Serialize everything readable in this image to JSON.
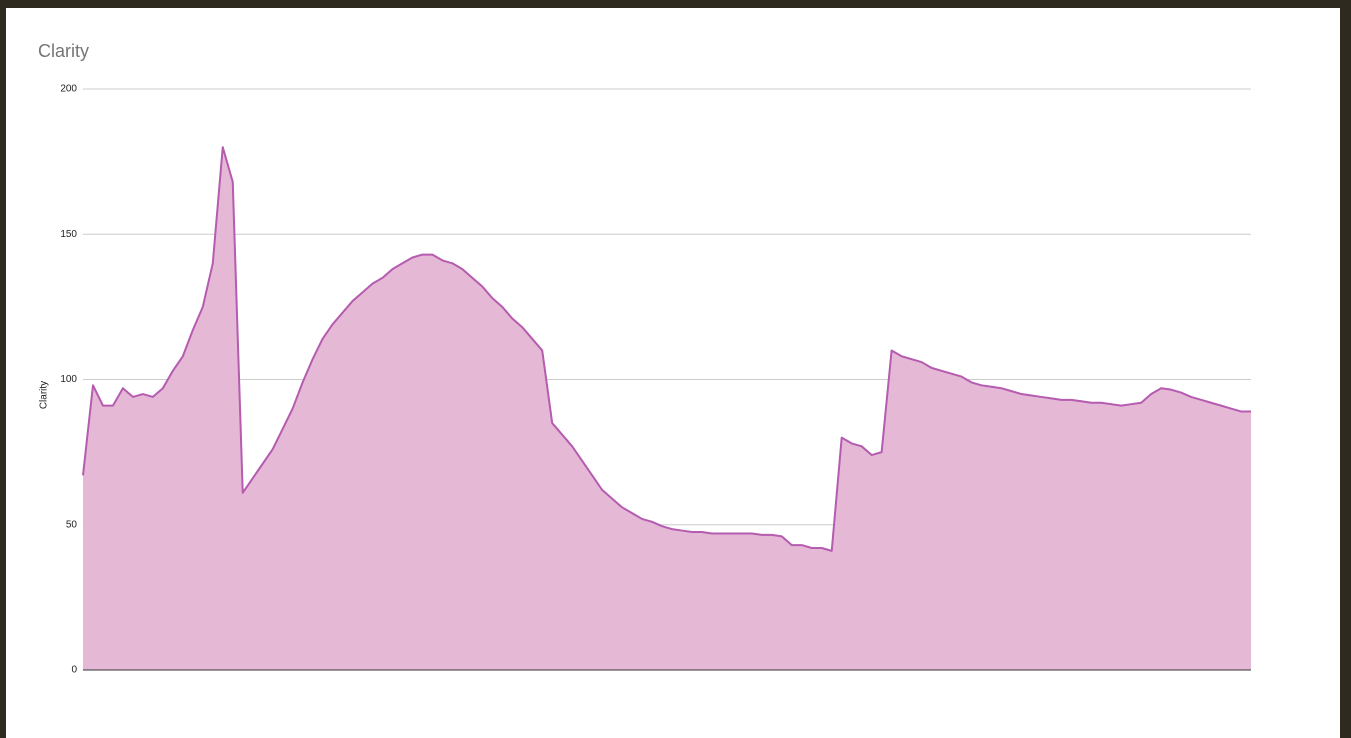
{
  "chart_data": {
    "type": "area",
    "title": "Clarity",
    "y_label": "Clarity",
    "color": "#b55bb0",
    "fill": "#e4b5d4",
    "ylim": [
      0,
      200
    ],
    "yticks": [
      0,
      50,
      100,
      150,
      200
    ],
    "grid": true,
    "values": [
      67,
      98,
      91,
      91,
      97,
      94,
      95,
      94,
      97,
      103,
      108,
      117,
      125,
      140,
      180,
      168,
      61,
      66,
      71,
      76,
      83,
      90,
      99,
      107,
      114,
      119,
      123,
      127,
      130,
      133,
      135,
      138,
      140,
      142,
      143,
      143,
      141,
      140,
      138,
      135,
      132,
      128,
      125,
      121,
      118,
      114,
      110,
      85,
      81,
      77,
      72,
      67,
      62,
      59,
      56,
      54,
      52,
      51,
      49.5,
      48.5,
      48,
      47.5,
      47.5,
      47,
      47,
      47,
      47,
      47,
      46.5,
      46.5,
      46,
      43,
      43,
      42,
      42,
      41,
      80,
      78,
      77,
      74,
      75,
      110,
      108,
      107,
      106,
      104,
      103,
      102,
      101,
      99,
      98,
      97.5,
      97,
      96,
      95,
      94.5,
      94,
      93.5,
      93,
      93,
      92.5,
      92,
      92,
      91.5,
      91,
      91.5,
      92,
      95,
      97,
      96.5,
      95.5,
      94,
      93,
      92,
      91,
      90,
      89,
      89
    ]
  }
}
